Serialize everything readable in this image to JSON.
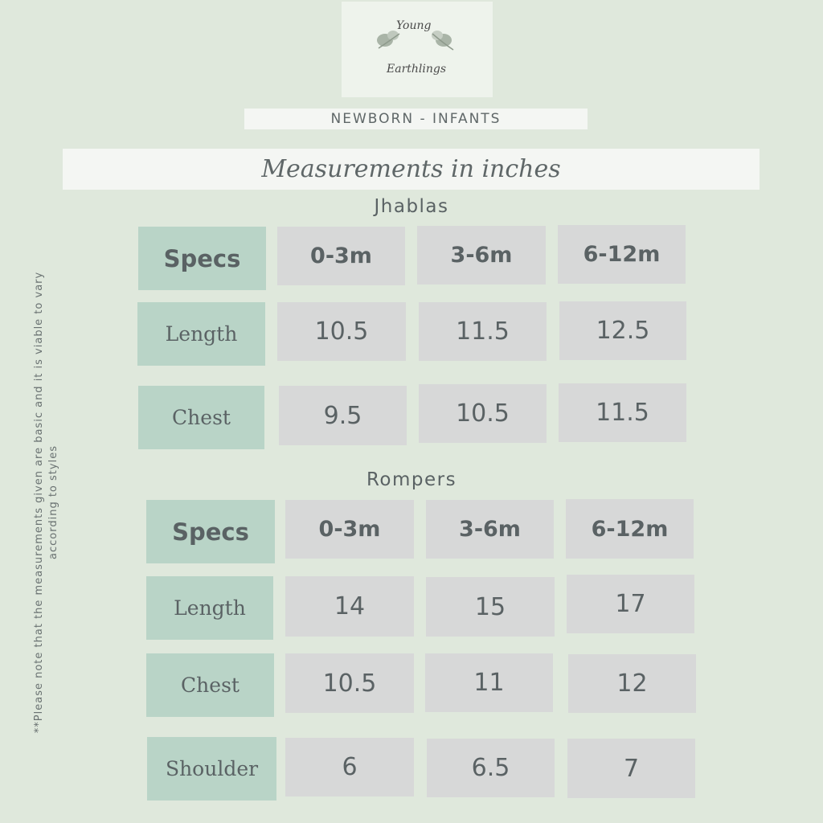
{
  "logo": {
    "line1": "Young",
    "line2": "Earthlings"
  },
  "banner": "NEWBORN - INFANTS",
  "subtitle": "Measurements in inches",
  "jhablas": {
    "title": "Jhablas",
    "headers": [
      "Specs",
      "0-3m",
      "3-6m",
      "6-12m"
    ],
    "rows": [
      {
        "label": "Length",
        "values": [
          "10.5",
          "11.5",
          "12.5"
        ]
      },
      {
        "label": "Chest",
        "values": [
          "9.5",
          "10.5",
          "11.5"
        ]
      }
    ]
  },
  "rompers": {
    "title": "Rompers",
    "headers": [
      "Specs",
      "0-3m",
      "3-6m",
      "6-12m"
    ],
    "rows": [
      {
        "label": "Length",
        "values": [
          "14",
          "15",
          "17"
        ]
      },
      {
        "label": "Chest",
        "values": [
          "10.5",
          "11",
          "12"
        ]
      },
      {
        "label": "Shoulder",
        "values": [
          "6",
          "6.5",
          "7"
        ]
      }
    ]
  },
  "note": "**Please note that the measurements given are basic and it is viable to vary according to styles"
}
